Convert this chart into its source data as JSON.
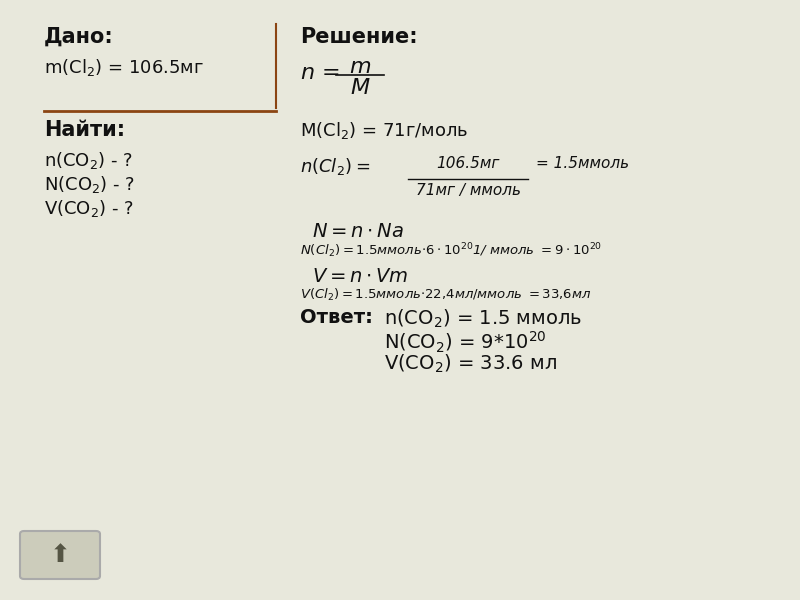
{
  "bg_color": "#e8e8dc",
  "text_color": "#111111",
  "divider_color": "#8B4513",
  "dado_title": "Дано:",
  "dado_line": "m(Cl₂) = 106.5мг",
  "nayti_title": "Найти:",
  "nayti_1": "n(CO₂) - ?",
  "nayti_2": "N(CO₂) - ?",
  "nayti_3": "V(CO₂) - ?",
  "reshenie_title": "Решение:",
  "mcl2_line": "M(Cl₂) = 71г/моль",
  "otvet_label": "Ответ:",
  "otvet1": "n(CO₂) = 1.5 ммоль",
  "otvet2": "N(CO₂) = 9*10",
  "otvet2_sup": "20",
  "otvet3": "V(CO₂) = 33.6 мл"
}
